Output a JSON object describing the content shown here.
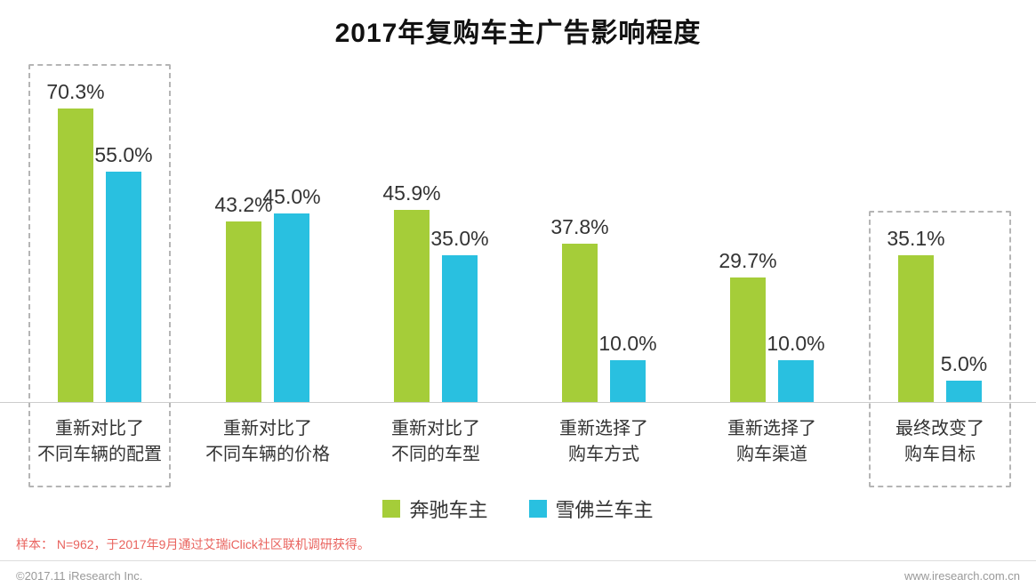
{
  "title": "2017年复购车主广告影响程度",
  "chart_data": {
    "type": "bar",
    "categories": [
      [
        "重新对比了",
        "不同车辆的配置"
      ],
      [
        "重新对比了",
        "不同车辆的价格"
      ],
      [
        "重新对比了",
        "不同的车型"
      ],
      [
        "重新选择了",
        "购车方式"
      ],
      [
        "重新选择了",
        "购车渠道"
      ],
      [
        "最终改变了",
        "购车目标"
      ]
    ],
    "series": [
      {
        "name": "奔驰车主",
        "color": "#a5cd39",
        "values": [
          70.3,
          43.2,
          45.9,
          37.8,
          29.7,
          35.1
        ]
      },
      {
        "name": "雪佛兰车主",
        "color": "#29c0e0",
        "values": [
          55.0,
          45.0,
          35.0,
          10.0,
          10.0,
          5.0
        ]
      }
    ],
    "highlighted_groups": [
      0,
      5
    ],
    "value_suffix": "%",
    "ylim": [
      0,
      80
    ],
    "grid": false,
    "legend_position": "bottom"
  },
  "footer": {
    "note": "样本： N=962，于2017年9月通过艾瑞iClick社区联机调研获得。",
    "copyright": "©2017.11 iResearch Inc.",
    "website": "www.iresearch.com.cn"
  }
}
